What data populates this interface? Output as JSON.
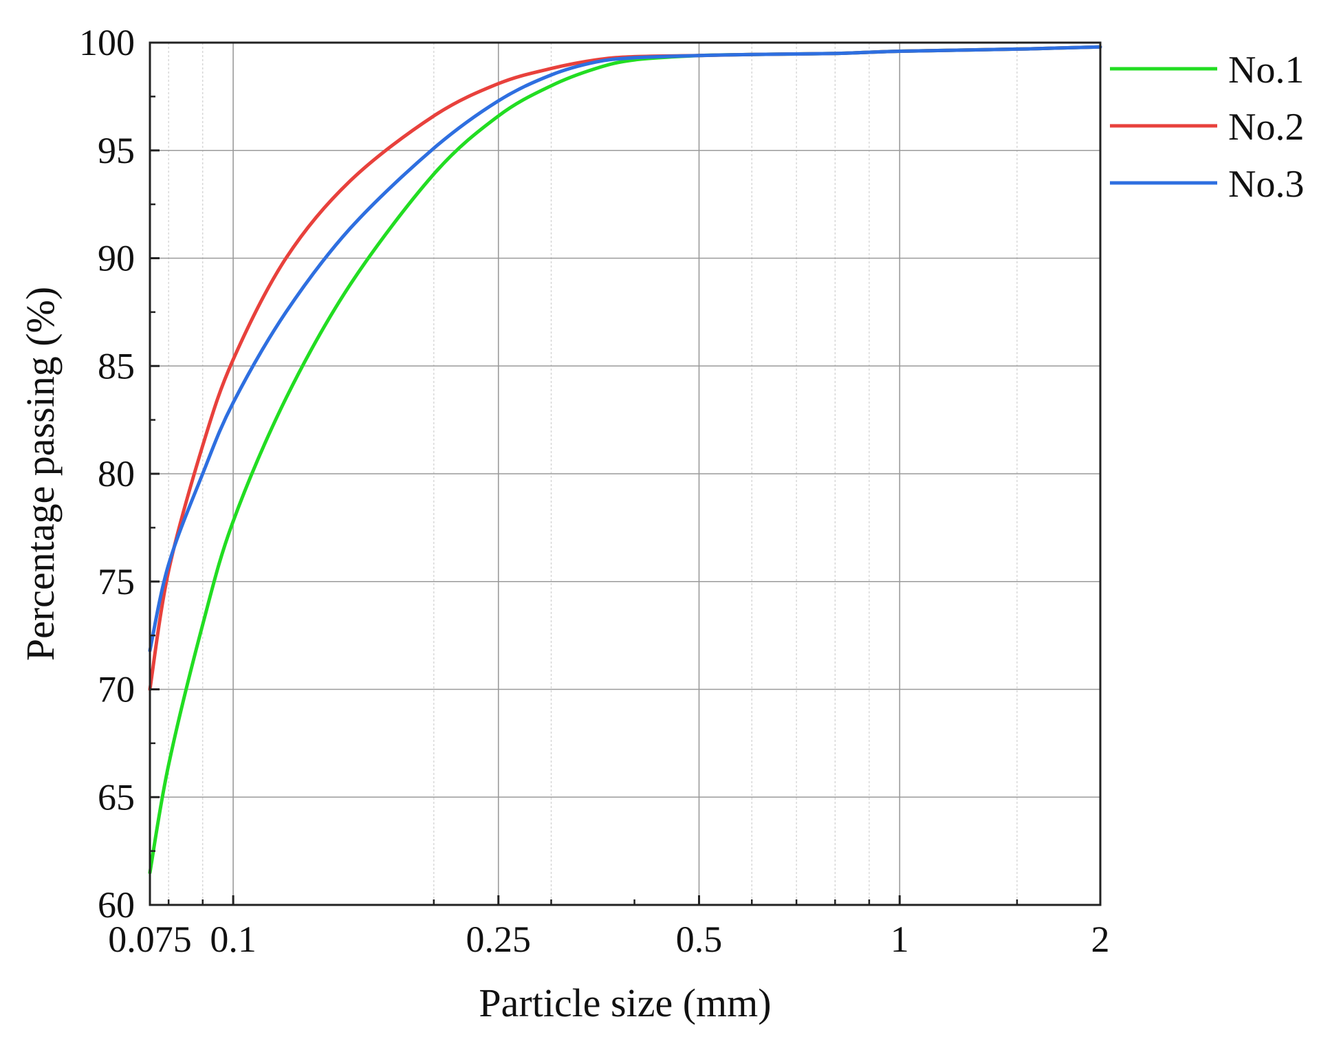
{
  "chart_data": {
    "type": "line",
    "title": "",
    "xlabel": "Particle size (mm)",
    "ylabel": "Percentage passing (%)",
    "x_scale": "log",
    "xlim": [
      0.075,
      2
    ],
    "ylim": [
      60,
      100
    ],
    "x_ticks": [
      0.075,
      0.1,
      0.25,
      0.5,
      1,
      2
    ],
    "x_tick_labels": [
      "0.075",
      "0.1",
      "0.25",
      "0.5",
      "1",
      "2"
    ],
    "y_ticks": [
      60,
      65,
      70,
      75,
      80,
      85,
      90,
      95,
      100
    ],
    "y_tick_labels": [
      "60",
      "65",
      "70",
      "75",
      "80",
      "85",
      "90",
      "95",
      "100"
    ],
    "grid": true,
    "legend_position": "outside-right-top",
    "x": [
      0.075,
      0.08,
      0.09,
      0.1,
      0.12,
      0.15,
      0.2,
      0.25,
      0.3,
      0.35,
      0.4,
      0.5,
      0.6,
      0.8,
      1,
      1.5,
      2
    ],
    "series": [
      {
        "name": "No.1",
        "color": "#22dd22",
        "values": [
          61.5,
          66.5,
          73.0,
          77.8,
          83.5,
          88.8,
          93.9,
          96.6,
          98.0,
          98.8,
          99.2,
          99.4,
          99.45,
          99.5,
          99.6,
          99.7,
          99.8
        ]
      },
      {
        "name": "No.2",
        "color": "#e8413c",
        "values": [
          70.0,
          75.5,
          81.3,
          85.3,
          90.0,
          93.6,
          96.6,
          98.1,
          98.8,
          99.2,
          99.35,
          99.4,
          99.45,
          99.5,
          99.6,
          99.7,
          99.8
        ]
      },
      {
        "name": "No.3",
        "color": "#2e6fe0",
        "values": [
          71.8,
          75.8,
          80.0,
          83.3,
          87.5,
          91.4,
          95.1,
          97.3,
          98.5,
          99.1,
          99.3,
          99.4,
          99.45,
          99.5,
          99.6,
          99.7,
          99.8
        ]
      }
    ]
  }
}
